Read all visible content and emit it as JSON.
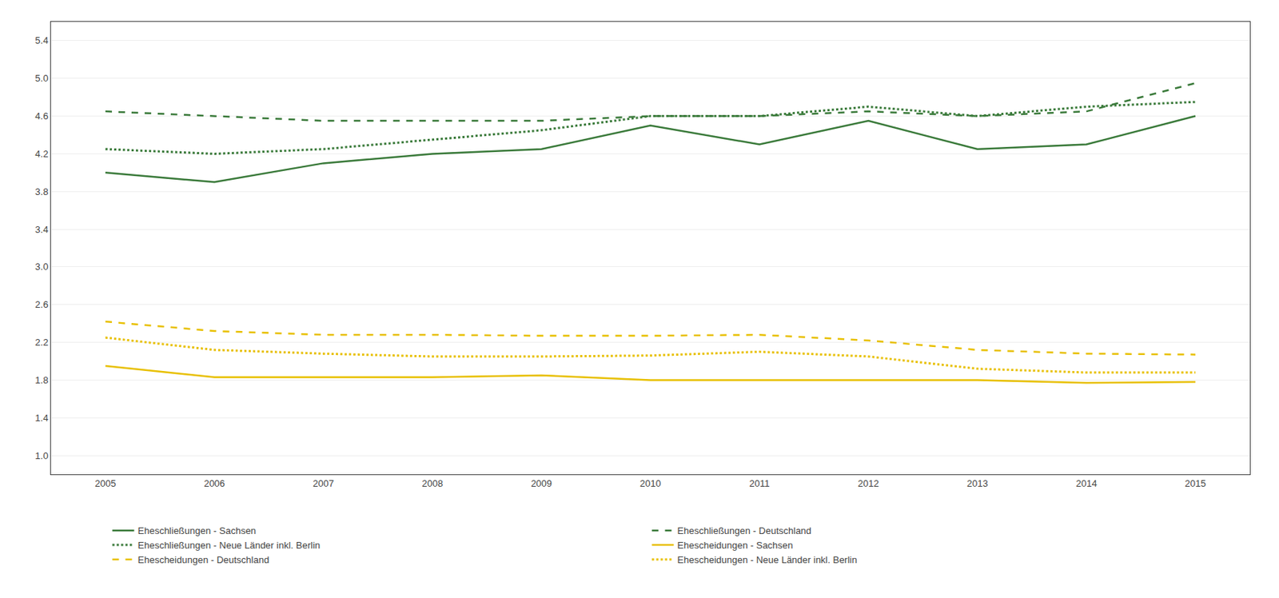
{
  "chart_data": {
    "type": "line",
    "x": [
      2005,
      2006,
      2007,
      2008,
      2009,
      2010,
      2011,
      2012,
      2013,
      2014,
      2015
    ],
    "series": [
      {
        "name": "Eheschließungen - Sachsen",
        "color": "#3a7a3a",
        "line_style": "solid",
        "values": [
          4.0,
          3.9,
          4.1,
          4.2,
          4.25,
          4.5,
          4.3,
          4.55,
          4.25,
          4.3,
          4.6
        ]
      },
      {
        "name": "Eheschließungen - Deutschland",
        "color": "#3a7a3a",
        "line_style": "dashed",
        "values": [
          4.65,
          4.6,
          4.55,
          4.55,
          4.55,
          4.6,
          4.6,
          4.65,
          4.6,
          4.65,
          4.95
        ]
      },
      {
        "name": "Eheschließungen - Neue Länder inkl. Berlin",
        "color": "#3a7a3a",
        "line_style": "dotted",
        "values": [
          4.25,
          4.2,
          4.25,
          4.35,
          4.45,
          4.6,
          4.6,
          4.7,
          4.6,
          4.7,
          4.75
        ]
      },
      {
        "name": "Ehescheidungen - Sachsen",
        "color": "#e8c000",
        "line_style": "solid",
        "values": [
          1.95,
          1.83,
          1.83,
          1.83,
          1.85,
          1.8,
          1.8,
          1.8,
          1.8,
          1.77,
          1.78
        ]
      },
      {
        "name": "Ehescheidungen - Deutschland",
        "color": "#e8c000",
        "line_style": "dashed",
        "values": [
          2.42,
          2.32,
          2.28,
          2.28,
          2.27,
          2.27,
          2.28,
          2.22,
          2.12,
          2.08,
          2.07
        ]
      },
      {
        "name": "Ehescheidungen - Neue Länder inkl. Berlin",
        "color": "#e8c000",
        "line_style": "dotted",
        "values": [
          2.25,
          2.12,
          2.08,
          2.05,
          2.05,
          2.06,
          2.1,
          2.05,
          1.92,
          1.88,
          1.88
        ]
      }
    ],
    "xlim": [
      2004.5,
      2015.5
    ],
    "xticks": [
      2005,
      2006,
      2007,
      2008,
      2009,
      2010,
      2011,
      2012,
      2013,
      2014,
      2015
    ],
    "ylim": [
      0.8,
      5.6
    ],
    "yticks": [
      {
        "value": 1.0,
        "label": "1.0"
      },
      1.4,
      1.8,
      2.2,
      2.6,
      {
        "value": 3.0,
        "label": "3.0"
      },
      3.4,
      3.8,
      4.2,
      4.6,
      {
        "value": 5.0,
        "label": "5.0"
      },
      5.4
    ],
    "grid": "y",
    "legend": "bottom"
  }
}
